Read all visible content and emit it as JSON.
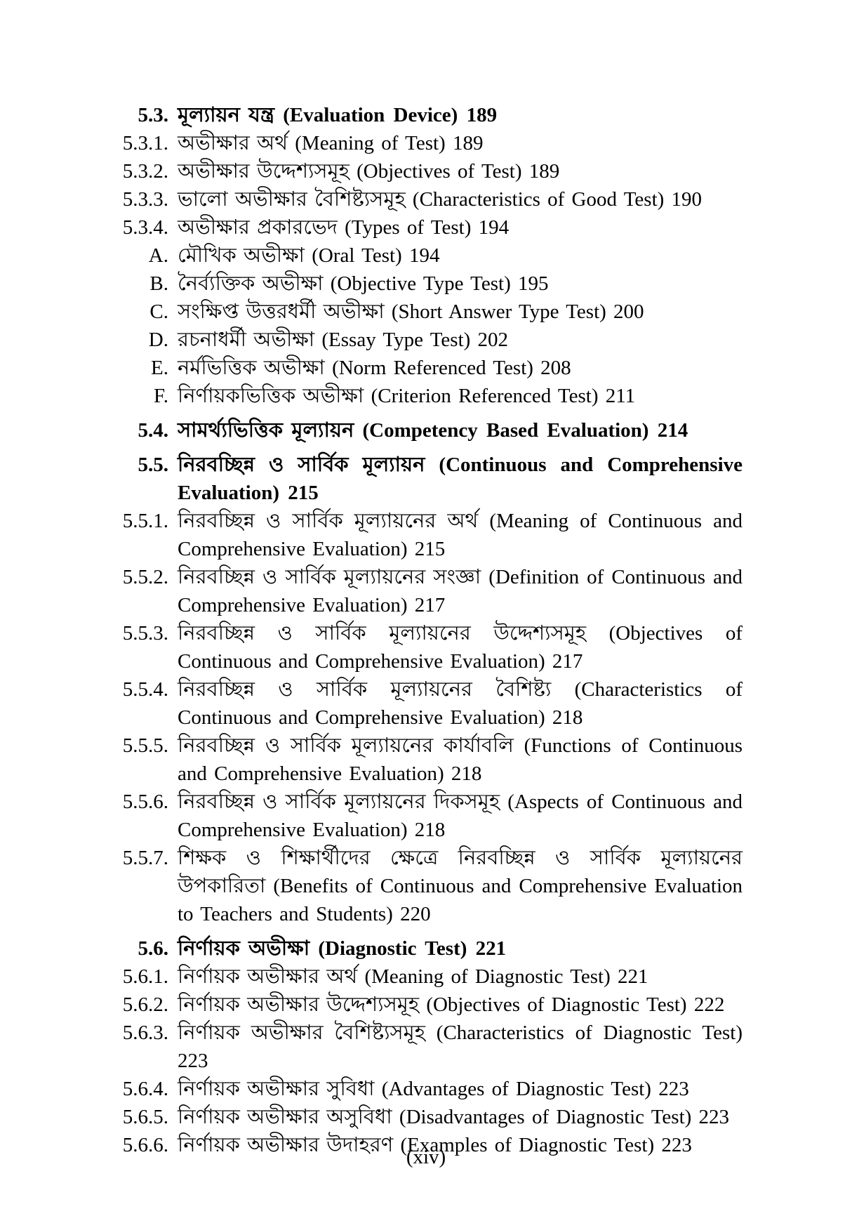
{
  "page": {
    "footer": "(xiv)"
  },
  "toc": {
    "items": [
      {
        "num": "5.3.",
        "style": "h",
        "text": "মূল্যায়ন যন্ত্র (Evaluation Device) 189"
      },
      {
        "num": "5.3.1.",
        "style": "e",
        "text": "অভীক্ষার অর্থ (Meaning of Test) 189"
      },
      {
        "num": "5.3.2.",
        "style": "e",
        "text": "অভীক্ষার উদ্দেশ্যসমূহ (Objectives of Test) 189"
      },
      {
        "num": "5.3.3.",
        "style": "e",
        "text": "ভালো অভীক্ষার বৈশিষ্ট্যসমূহ (Characteristics of Good Test) 190"
      },
      {
        "num": "5.3.4.",
        "style": "e",
        "text": "অভীক্ষার প্রকারভেদ (Types of Test) 194"
      },
      {
        "num": "A.",
        "style": "s",
        "text": "মৌখিক অভীক্ষা (Oral Test) 194"
      },
      {
        "num": "B.",
        "style": "s",
        "text": "নৈর্ব্যক্তিক অভীক্ষা (Objective Type Test) 195"
      },
      {
        "num": "C.",
        "style": "s",
        "text": "সংক্ষিপ্ত উত্তরধর্মী অভীক্ষা (Short Answer Type Test) 200"
      },
      {
        "num": "D.",
        "style": "s",
        "text": "রচনাধর্মী অভীক্ষা (Essay Type Test) 202"
      },
      {
        "num": "E.",
        "style": "s",
        "text": "নর্মভিত্তিক অভীক্ষা (Norm Referenced Test) 208"
      },
      {
        "num": "F.",
        "style": "s",
        "text": "নির্ণায়কভিত্তিক অভীক্ষা (Criterion Referenced Test) 211"
      },
      {
        "num": "5.4.",
        "style": "h",
        "text": "সামর্থ্যভিত্তিক মূল্যায়ন (Competency Based Evaluation) 214"
      },
      {
        "num": "5.5.",
        "style": "h",
        "text": "নিরবচ্ছিন্ন ও সার্বিক মূল্যায়ন (Continuous and Comprehensive Evaluation) 215"
      },
      {
        "num": "5.5.1.",
        "style": "e",
        "text": "নিরবচ্ছিন্ন ও সার্বিক মূল্যায়নের অর্থ (Meaning of Continuous and Comprehensive Evaluation) 215"
      },
      {
        "num": "5.5.2.",
        "style": "e",
        "text": "নিরবচ্ছিন্ন ও সার্বিক মূল্যায়নের সংজ্ঞা (Definition of Continuous and Comprehensive Evaluation) 217"
      },
      {
        "num": "5.5.3.",
        "style": "e",
        "text": "নিরবচ্ছিন্ন ও সার্বিক মূল্যায়নের উদ্দেশ্যসমূহ (Objectives of Continuous and Comprehensive Evaluation) 217"
      },
      {
        "num": "5.5.4.",
        "style": "e",
        "text": "নিরবচ্ছিন্ন ও সার্বিক মূল্যায়নের বৈশিষ্ট্য (Characteristics of Continuous and Comprehensive Evaluation) 218"
      },
      {
        "num": "5.5.5.",
        "style": "e",
        "text": "নিরবচ্ছিন্ন ও সার্বিক মূল্যায়নের কার্যাবলি (Functions of Continuous and Comprehensive Evaluation) 218"
      },
      {
        "num": "5.5.6.",
        "style": "e",
        "text": "নিরবচ্ছিন্ন ও সার্বিক মূল্যায়নের দিকসমূহ (Aspects of Continuous and Comprehensive Evaluation) 218"
      },
      {
        "num": "5.5.7.",
        "style": "e",
        "text": "শিক্ষক ও শিক্ষার্থীদের ক্ষেত্রে নিরবচ্ছিন্ন ও সার্বিক মূল্যায়নের উপকারিতা (Benefits of Continuous and Comprehensive Evaluation to Teachers and Students) 220"
      },
      {
        "num": "5.6.",
        "style": "h",
        "text": "নির্ণায়ক অভীক্ষা (Diagnostic Test) 221"
      },
      {
        "num": "5.6.1.",
        "style": "e",
        "text": "নির্ণায়ক অভীক্ষার অর্থ (Meaning of Diagnostic Test) 221"
      },
      {
        "num": "5.6.2.",
        "style": "e",
        "text": "নির্ণায়ক অভীক্ষার উদ্দেশ্যসমূহ (Objectives of Diagnostic Test) 222"
      },
      {
        "num": "5.6.3.",
        "style": "e",
        "text": "নির্ণায়ক অভীক্ষার বৈশিষ্ট্যসমূহ (Characteristics of Diagnostic Test) 223"
      },
      {
        "num": "5.6.4.",
        "style": "e",
        "text": "নির্ণায়ক অভীক্ষার সুবিধা (Advantages of Diagnostic Test) 223"
      },
      {
        "num": "5.6.5.",
        "style": "e",
        "text": "নির্ণায়ক অভীক্ষার অসুবিধা (Disadvantages of Diagnostic Test) 223"
      },
      {
        "num": "5.6.6.",
        "style": "e",
        "text": "নির্ণায়ক অভীক্ষার উদাহরণ (Examples of Diagnostic Test) 223"
      }
    ]
  }
}
